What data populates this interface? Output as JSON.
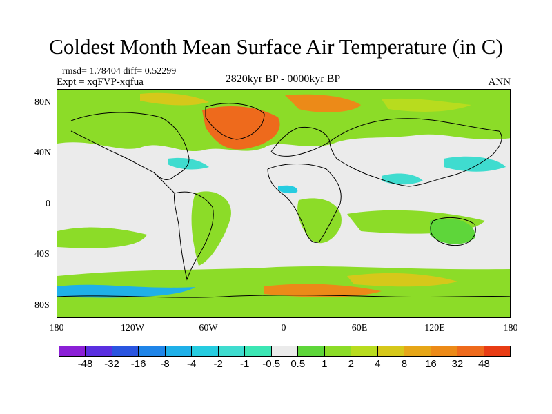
{
  "title": "Coldest Month Mean Surface Air Temperature (in C)",
  "stats_line": "rmsd= 1.78404 diff= 0.52299",
  "experiment_line": "Expt = xqFVP-xqfua",
  "period_line": "2820kyr BP - 0000kyr BP",
  "season_label": "ANN",
  "map": {
    "latitude_labels": [
      "80N",
      "40N",
      "0",
      "40S",
      "80S"
    ],
    "longitude_labels": [
      "180",
      "120W",
      "60W",
      "0",
      "60E",
      "120E",
      "180"
    ],
    "background_color": "#ebebeb",
    "land_outline_color": "#000000"
  },
  "colorbar": {
    "colors": [
      "#8b1fd6",
      "#5a2fe0",
      "#2a55e0",
      "#1f85e8",
      "#1fb0e8",
      "#26cce0",
      "#3fdccf",
      "#3ce6b4",
      "#ebebeb",
      "#5ed63a",
      "#8cdc28",
      "#b8dc1e",
      "#d6c81a",
      "#e6a618",
      "#ec8a18",
      "#ee6a1c",
      "#e83c14"
    ],
    "labels": [
      "-48",
      "-32",
      "-16",
      "-8",
      "-4",
      "-2",
      "-1",
      "-0.5",
      "0.5",
      "1",
      "2",
      "4",
      "8",
      "16",
      "32",
      "48"
    ]
  }
}
